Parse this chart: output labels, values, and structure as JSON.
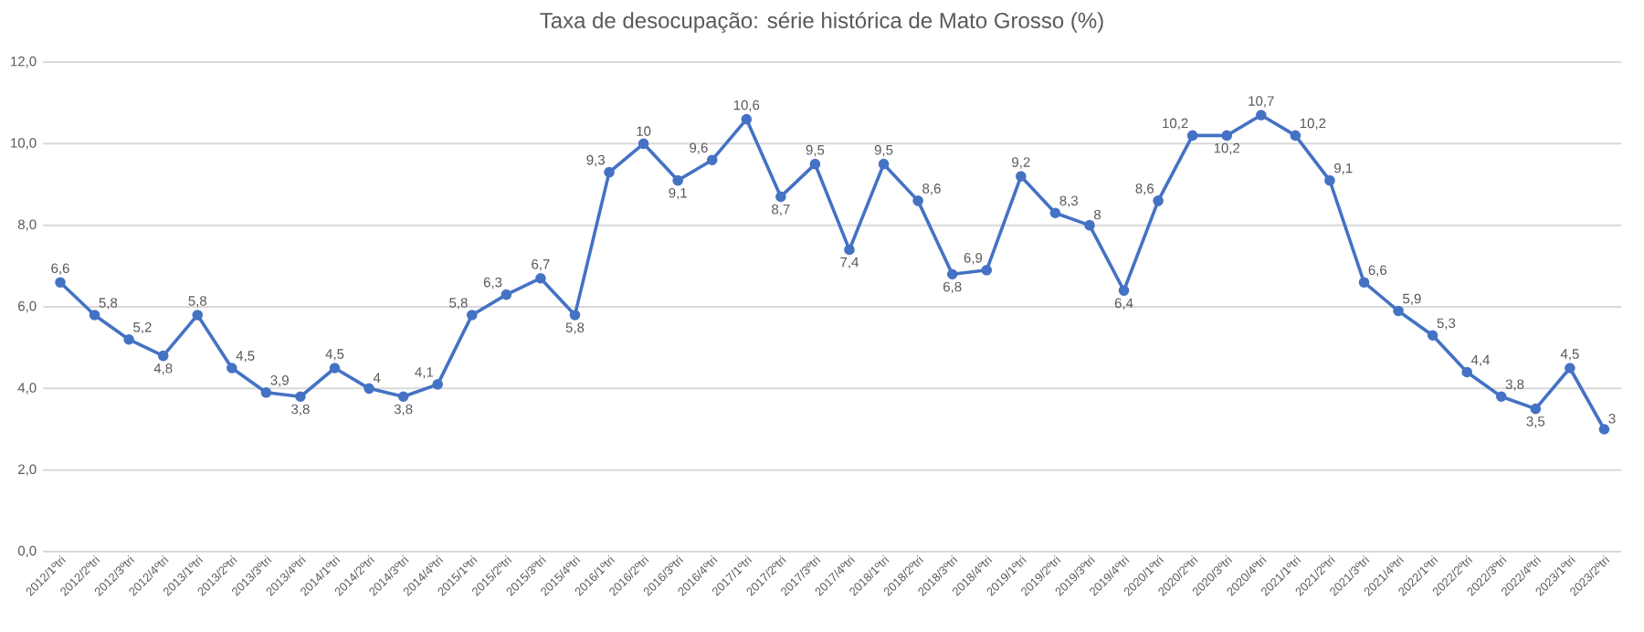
{
  "chart_data": {
    "type": "line",
    "title": "Taxa de desocupação: série histórica de Mato Grosso (%)",
    "categories": [
      "2012/1ºtri",
      "2012/2ºtri",
      "2012/3ºtri",
      "2012/4ºtri",
      "2013/1ºtri",
      "2013/2ºtri",
      "2013/3ºtri",
      "2013/4ºtri",
      "2014/1ºtri",
      "2014/2ºtri",
      "2014/3ºtri",
      "2014/4ºtri",
      "2015/1ºtri",
      "2015/2ºtri",
      "2015/3ºtri",
      "2015/4ºtri",
      "2016/1ºtri",
      "2016/2ºtri",
      "2016/3ºtri",
      "2016/4ºtri",
      "2017/1ºtri",
      "2017/2ºtri",
      "2017/3ºtri",
      "2017/4ºtri",
      "2018/1ºtri",
      "2018/2ºtri",
      "2018/3ºtri",
      "2018/4ºtri",
      "2019/1ºtri",
      "2019/2ºtri",
      "2019/3ºtri",
      "2019/4ºtri",
      "2020/1ºtri",
      "2020/2ºtri",
      "2020/3ºtri",
      "2020/4ºtri",
      "2021/1ºtri",
      "2021/2ºtri",
      "2021/3ºtri",
      "2021/4ºtri",
      "2022/1ºtri",
      "2022/2ºtri",
      "2022/3ºtri",
      "2022/4ºtri",
      "2023/1ºtri",
      "2023/2ºtri"
    ],
    "values": [
      6.6,
      5.8,
      5.2,
      4.8,
      5.8,
      4.5,
      3.9,
      3.8,
      4.5,
      4,
      3.8,
      4.1,
      5.8,
      6.3,
      6.7,
      5.8,
      9.3,
      10,
      9.1,
      9.6,
      10.6,
      8.7,
      9.5,
      7.4,
      9.5,
      8.6,
      6.8,
      6.9,
      9.2,
      8.3,
      8,
      6.4,
      8.6,
      10.2,
      10.2,
      10.7,
      10.2,
      9.1,
      6.6,
      5.9,
      5.3,
      4.4,
      3.8,
      3.5,
      4.5,
      3
    ],
    "value_labels": [
      "6,6",
      "5,8",
      "5,2",
      "4,8",
      "5,8",
      "4,5",
      "3,9",
      "3,8",
      "4,5",
      "4",
      "3,8",
      "4,1",
      "5,8",
      "6,3",
      "6,7",
      "5,8",
      "9,3",
      "10",
      "9,1",
      "9,6",
      "10,6",
      "8,7",
      "9,5",
      "7,4",
      "9,5",
      "8,6",
      "6,8",
      "6,9",
      "9,2",
      "8,3",
      "8",
      "6,4",
      "8,6",
      "10,2",
      "10,2",
      "10,7",
      "10,2",
      "9,1",
      "6,6",
      "5,9",
      "5,3",
      "4,4",
      "3,8",
      "3,5",
      "4,5",
      "3"
    ],
    "color": "#4472c4",
    "marker": "circle",
    "line_style": "solid",
    "grid": "y",
    "ylim": [
      0,
      12
    ],
    "yticks": [
      {
        "value": 0,
        "label": "0,0"
      },
      {
        "value": 2,
        "label": "2,0"
      },
      {
        "value": 4,
        "label": "4,0"
      },
      {
        "value": 6,
        "label": "6,0"
      },
      {
        "value": 8,
        "label": "8,0"
      },
      {
        "value": 10,
        "label": "10,0"
      },
      {
        "value": 12,
        "label": "12,0"
      }
    ]
  }
}
